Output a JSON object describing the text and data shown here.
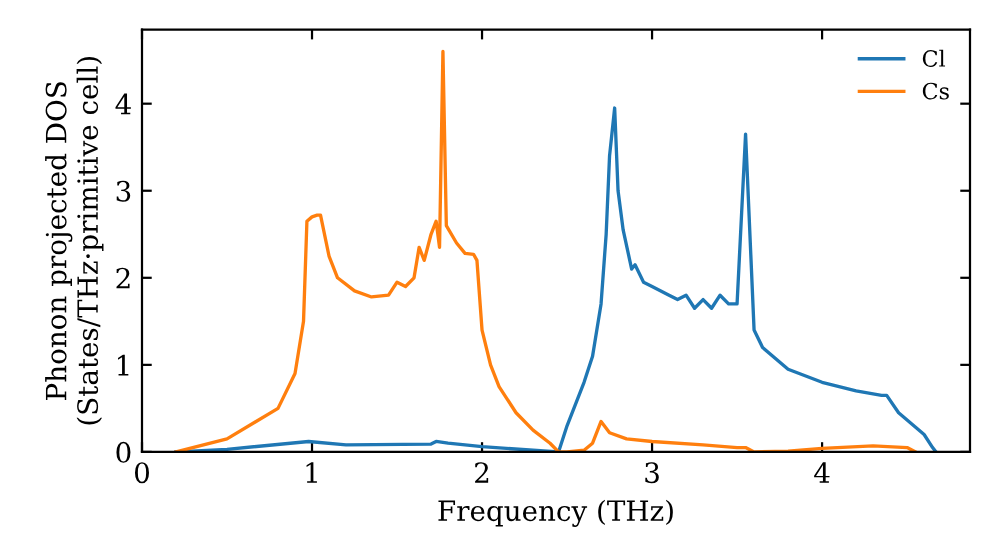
{
  "chart_data": {
    "type": "line",
    "xlabel": "Frequency (THz)",
    "ylabel": "Phonon projected DOS\n(States/THz·primitive cell)",
    "xlim": [
      0,
      4.87
    ],
    "ylim": [
      0,
      4.85
    ],
    "xticks": [
      0,
      1,
      2,
      3,
      4
    ],
    "yticks": [
      0,
      1,
      2,
      3,
      4
    ],
    "grid": false,
    "legend": "top right",
    "marker": "none",
    "line_style": "solid",
    "series": [
      {
        "name": "Cl",
        "color": "#1f77b4",
        "x": [
          0.2,
          0.5,
          0.98,
          1.2,
          1.7,
          1.73,
          1.8,
          2.0,
          2.45,
          2.5,
          2.6,
          2.65,
          2.7,
          2.73,
          2.75,
          2.78,
          2.8,
          2.83,
          2.88,
          2.9,
          2.95,
          3.0,
          3.1,
          3.15,
          3.2,
          3.25,
          3.3,
          3.35,
          3.4,
          3.45,
          3.5,
          3.55,
          3.6,
          3.65,
          3.8,
          4.0,
          4.2,
          4.35,
          4.38,
          4.45,
          4.6,
          4.65,
          4.67
        ],
        "values": [
          0,
          0.03,
          0.12,
          0.08,
          0.09,
          0.12,
          0.1,
          0.06,
          0,
          0.3,
          0.8,
          1.1,
          1.7,
          2.5,
          3.4,
          3.95,
          3.0,
          2.55,
          2.1,
          2.15,
          1.95,
          1.9,
          1.8,
          1.75,
          1.8,
          1.65,
          1.75,
          1.65,
          1.8,
          1.7,
          1.7,
          3.65,
          1.4,
          1.2,
          0.95,
          0.8,
          0.7,
          0.65,
          0.65,
          0.45,
          0.2,
          0.05,
          0
        ]
      },
      {
        "name": "Cs",
        "color": "#ff7f0e",
        "x": [
          0.2,
          0.5,
          0.8,
          0.9,
          0.95,
          0.97,
          1.0,
          1.03,
          1.05,
          1.1,
          1.15,
          1.25,
          1.35,
          1.45,
          1.5,
          1.55,
          1.6,
          1.63,
          1.66,
          1.7,
          1.73,
          1.75,
          1.77,
          1.79,
          1.85,
          1.9,
          1.95,
          1.97,
          2.0,
          2.05,
          2.1,
          2.2,
          2.3,
          2.4,
          2.45,
          2.5,
          2.6,
          2.65,
          2.7,
          2.75,
          2.85,
          3.0,
          3.3,
          3.5,
          3.55,
          3.6,
          3.8,
          4.0,
          4.3,
          4.5,
          4.55
        ],
        "values": [
          0,
          0.15,
          0.5,
          0.9,
          1.5,
          2.65,
          2.7,
          2.72,
          2.72,
          2.25,
          2.0,
          1.85,
          1.78,
          1.8,
          1.95,
          1.9,
          2.0,
          2.35,
          2.2,
          2.5,
          2.65,
          2.35,
          4.6,
          2.6,
          2.4,
          2.28,
          2.27,
          2.2,
          1.4,
          1.0,
          0.75,
          0.45,
          0.25,
          0.1,
          0,
          0,
          0.02,
          0.1,
          0.35,
          0.22,
          0.15,
          0.12,
          0.08,
          0.05,
          0.05,
          0,
          0.01,
          0.04,
          0.07,
          0.05,
          0
        ]
      }
    ]
  }
}
